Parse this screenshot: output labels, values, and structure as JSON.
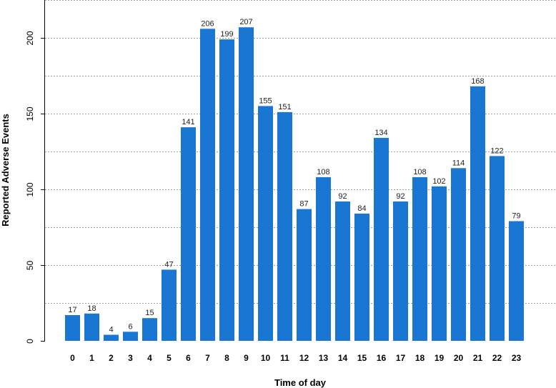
{
  "chart_data": {
    "type": "bar",
    "xlabel": "Time of day",
    "ylabel": "Reported Adverse Events",
    "categories": [
      "0",
      "1",
      "2",
      "3",
      "4",
      "5",
      "6",
      "7",
      "8",
      "9",
      "10",
      "11",
      "12",
      "13",
      "14",
      "15",
      "16",
      "17",
      "18",
      "19",
      "20",
      "21",
      "22",
      "23"
    ],
    "values": [
      17,
      18,
      4,
      6,
      15,
      47,
      141,
      206,
      199,
      207,
      155,
      151,
      87,
      108,
      92,
      84,
      134,
      92,
      108,
      102,
      114,
      168,
      122,
      79
    ],
    "ylim": [
      0,
      225
    ],
    "y_ticks": [
      0,
      50,
      100,
      150,
      200
    ],
    "grid": true,
    "bar_color": "#1976d2",
    "data_labels": true
  }
}
